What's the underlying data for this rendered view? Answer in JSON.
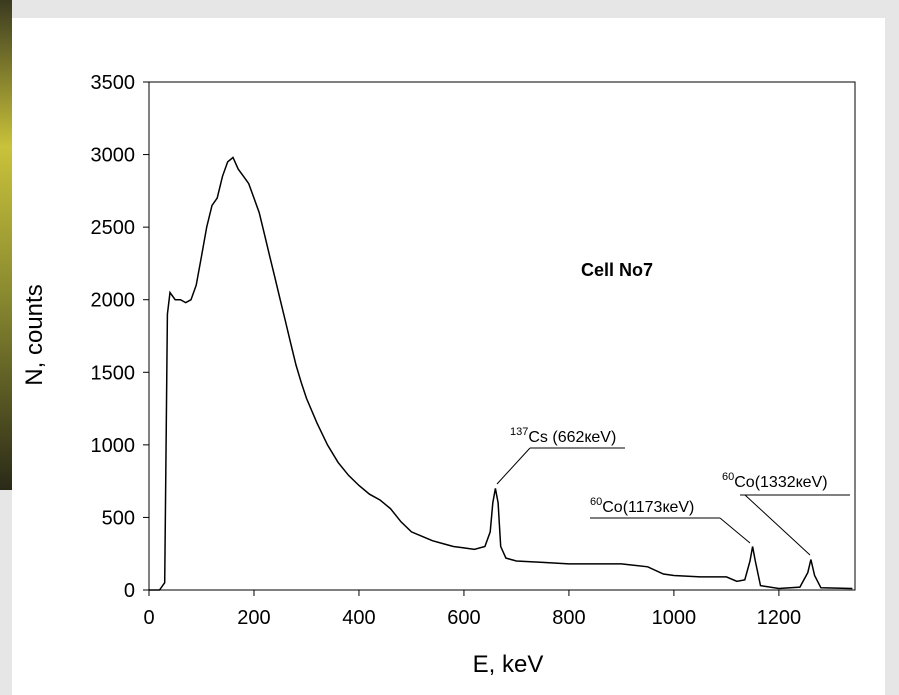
{
  "chart_data": {
    "type": "line",
    "xlabel": "E, keV",
    "ylabel": "N, counts",
    "annotations": [
      {
        "sup": "137",
        "text": "Cs (662кeV)"
      },
      {
        "sup": "60",
        "text": "Co(1173кeV)"
      },
      {
        "sup": "60",
        "text": "Co(1332кeV)"
      }
    ],
    "label": "Cell No7",
    "xlim": [
      0,
      1345
    ],
    "ylim": [
      0,
      3500
    ],
    "xticks": [
      0,
      200,
      400,
      600,
      800,
      1000,
      1200
    ],
    "yticks": [
      0,
      500,
      1000,
      1500,
      2000,
      2500,
      3000,
      3500
    ],
    "series": [
      {
        "color": "#000000",
        "x": [
          0,
          20,
          30,
          35,
          40,
          50,
          60,
          70,
          80,
          90,
          100,
          110,
          120,
          130,
          140,
          150,
          160,
          170,
          180,
          190,
          200,
          210,
          220,
          230,
          240,
          250,
          260,
          270,
          280,
          290,
          300,
          320,
          340,
          360,
          380,
          400,
          420,
          440,
          460,
          480,
          500,
          520,
          540,
          560,
          580,
          600,
          620,
          640,
          650,
          655,
          660,
          665,
          670,
          680,
          700,
          750,
          800,
          850,
          900,
          950,
          980,
          1000,
          1050,
          1100,
          1120,
          1135,
          1145,
          1150,
          1155,
          1165,
          1200,
          1240,
          1255,
          1261,
          1268,
          1280,
          1340
        ],
        "values": [
          0,
          0,
          50,
          1900,
          2050,
          2000,
          2000,
          1980,
          2000,
          2100,
          2300,
          2500,
          2650,
          2700,
          2850,
          2950,
          2980,
          2900,
          2850,
          2800,
          2700,
          2600,
          2450,
          2300,
          2150,
          2000,
          1850,
          1700,
          1550,
          1430,
          1320,
          1150,
          1000,
          880,
          790,
          720,
          660,
          620,
          560,
          470,
          400,
          370,
          340,
          320,
          300,
          290,
          280,
          300,
          400,
          600,
          700,
          600,
          300,
          220,
          200,
          190,
          180,
          180,
          180,
          160,
          110,
          100,
          90,
          90,
          60,
          70,
          200,
          300,
          200,
          30,
          10,
          20,
          120,
          210,
          100,
          15,
          10
        ]
      }
    ]
  }
}
